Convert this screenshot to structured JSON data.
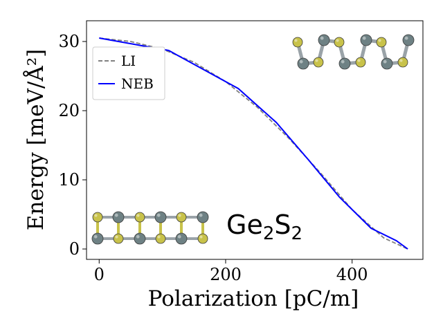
{
  "chart_data": {
    "type": "line",
    "xlabel": "Polarization [pC/m]",
    "ylabel": "Energy [meV/Å²]",
    "xlim": [
      -20,
      512
    ],
    "ylim": [
      -1.5,
      33
    ],
    "xticks": [
      0,
      200,
      400
    ],
    "yticks": [
      0,
      10,
      20,
      30
    ],
    "legend": {
      "placement": "upper-left"
    },
    "annotation": {
      "base": "Ge",
      "sub1": "2",
      "mid": "S",
      "sub2": "2"
    },
    "series": [
      {
        "name": "LI",
        "color": "#808080",
        "style": "dashed",
        "x": [
          0,
          50,
          100,
          150,
          200,
          250,
          300,
          350,
          400,
          450,
          488
        ],
        "y": [
          30.5,
          30.0,
          28.9,
          27.0,
          24.2,
          20.5,
          16.0,
          11.0,
          5.7,
          1.6,
          0.0
        ]
      },
      {
        "name": "NEB",
        "color": "#0000ff",
        "style": "solid",
        "x": [
          0,
          110,
          220,
          280,
          330,
          380,
          430,
          470,
          488
        ],
        "y": [
          30.5,
          28.7,
          23.2,
          18.3,
          13.0,
          7.5,
          3.0,
          1.2,
          0.0
        ]
      }
    ]
  },
  "colors": {
    "ge_atom": "#6e8184",
    "s_atom": "#c8c24a",
    "bond": "#9aa3a8"
  }
}
